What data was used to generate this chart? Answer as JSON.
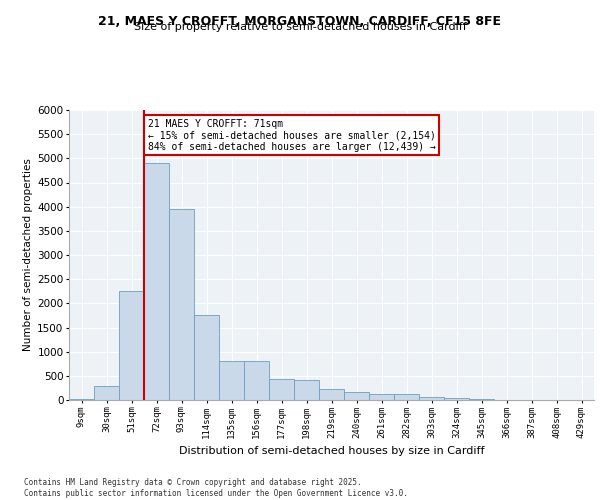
{
  "title1": "21, MAES Y CROFFT, MORGANSTOWN, CARDIFF, CF15 8FE",
  "title2": "Size of property relative to semi-detached houses in Cardiff",
  "xlabel": "Distribution of semi-detached houses by size in Cardiff",
  "ylabel": "Number of semi-detached properties",
  "annotation_text_line1": "21 MAES Y CROFFT: 71sqm",
  "annotation_text_line2": "← 15% of semi-detached houses are smaller (2,154)",
  "annotation_text_line3": "84% of semi-detached houses are larger (12,439) →",
  "bar_color": "#c9d9ea",
  "bar_edge_color": "#6a9fc0",
  "marker_color": "#cc0000",
  "background_color": "#edf2f7",
  "categories": [
    "9sqm",
    "30sqm",
    "51sqm",
    "72sqm",
    "93sqm",
    "114sqm",
    "135sqm",
    "156sqm",
    "177sqm",
    "198sqm",
    "219sqm",
    "240sqm",
    "261sqm",
    "282sqm",
    "303sqm",
    "324sqm",
    "345sqm",
    "366sqm",
    "387sqm",
    "408sqm",
    "429sqm"
  ],
  "values": [
    25,
    300,
    2250,
    4900,
    3950,
    1750,
    800,
    800,
    430,
    420,
    220,
    175,
    130,
    120,
    65,
    35,
    15,
    10,
    8,
    5,
    3
  ],
  "ylim": [
    0,
    6000
  ],
  "yticks": [
    0,
    500,
    1000,
    1500,
    2000,
    2500,
    3000,
    3500,
    4000,
    4500,
    5000,
    5500,
    6000
  ],
  "vline_x_index": 3,
  "footer1": "Contains HM Land Registry data © Crown copyright and database right 2025.",
  "footer2": "Contains public sector information licensed under the Open Government Licence v3.0."
}
